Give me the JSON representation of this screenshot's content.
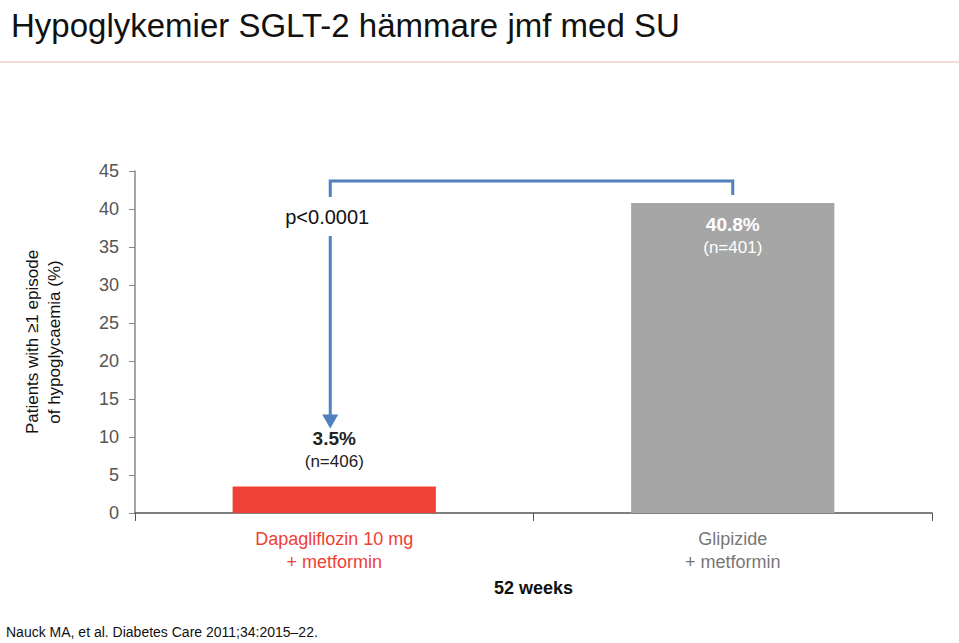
{
  "chart_data": {
    "type": "bar",
    "title": "Hypoglykemier SGLT-2 hämmare jmf med SU",
    "y_label": "Patients with ≥1 episode\nof hypoglycaemia (%)",
    "x_label": "52 weeks",
    "categories": [
      "Dapagliflozin 10 mg\n+ metformin",
      "Glipizide\n+ metformin"
    ],
    "values": [
      3.5,
      40.8
    ],
    "value_labels": [
      "3.5%\n(n=406)",
      "40.8%\n(n=401)"
    ],
    "colors": [
      "#ef4136",
      "#a6a6a6"
    ],
    "ylim": [
      0,
      45
    ],
    "yticks": [
      0,
      5,
      10,
      15,
      20,
      25,
      30,
      35,
      40,
      45
    ],
    "grid": false,
    "data_labels": true,
    "annotations": [
      "p<0.0001"
    ],
    "source": "Nauck MA, et al. Diabetes Care 2011;34:2015–22."
  }
}
